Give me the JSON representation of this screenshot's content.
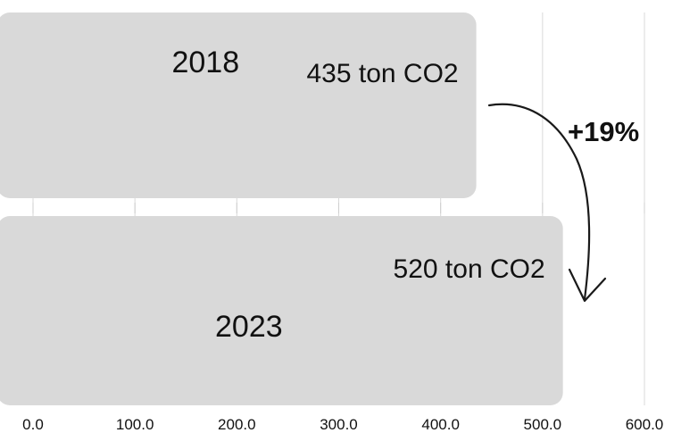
{
  "chart_data": {
    "type": "bar",
    "orientation": "horizontal",
    "categories": [
      "2018",
      "2023"
    ],
    "values": [
      435,
      520
    ],
    "value_labels": [
      "435 ton CO2",
      "520 ton CO2"
    ],
    "xlim": [
      0,
      600
    ],
    "xticks": [
      "0.0",
      "100.0",
      "200.0",
      "300.0",
      "400.0",
      "500.0",
      "600.0"
    ],
    "grid": "vertical",
    "annotation": "+19%",
    "colors": {
      "bar": "#d9d9d9",
      "grid": "#d9d9d9",
      "text": "#111111",
      "arrow": "#1a1a1a"
    }
  }
}
